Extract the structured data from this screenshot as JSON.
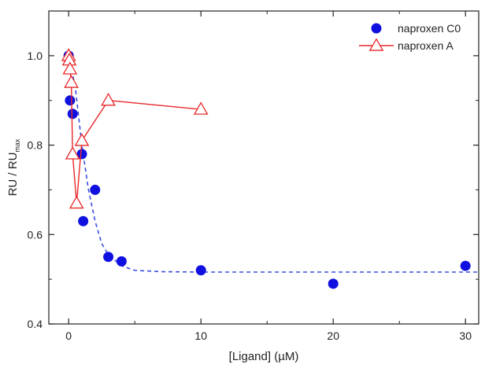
{
  "chart_data": {
    "type": "scatter",
    "xlabel": "[Ligand] (µM)",
    "ylabel_main": "RU / RU",
    "ylabel_sub": "max",
    "xlim": [
      -1.5,
      31
    ],
    "ylim": [
      0.4,
      1.1
    ],
    "xticks": [
      0,
      10,
      20,
      30
    ],
    "yticks": [
      0.4,
      0.6,
      0.8,
      1.0
    ],
    "xtick_labels": [
      "0",
      "10",
      "20",
      "30"
    ],
    "ytick_labels": [
      "0.4",
      "0.6",
      "0.8",
      "1.0"
    ],
    "legend_position": "top-right",
    "series": [
      {
        "name": "naproxen C0",
        "marker": "filled-circle",
        "color": "#1010e0",
        "points": [
          {
            "x": 0,
            "y": 1.0
          },
          {
            "x": 0.1,
            "y": 0.9
          },
          {
            "x": 0.3,
            "y": 0.87
          },
          {
            "x": 1,
            "y": 0.78
          },
          {
            "x": 1.1,
            "y": 0.63
          },
          {
            "x": 2,
            "y": 0.7
          },
          {
            "x": 3,
            "y": 0.55
          },
          {
            "x": 4,
            "y": 0.54
          },
          {
            "x": 10,
            "y": 0.52
          },
          {
            "x": 20,
            "y": 0.49
          },
          {
            "x": 30,
            "y": 0.53
          }
        ],
        "fit": {
          "style": "dashed",
          "color": "#3a4ee0",
          "points": [
            {
              "x": 0,
              "y": 1.0
            },
            {
              "x": 0.5,
              "y": 0.93
            },
            {
              "x": 1,
              "y": 0.8
            },
            {
              "x": 1.5,
              "y": 0.7
            },
            {
              "x": 2,
              "y": 0.63
            },
            {
              "x": 2.5,
              "y": 0.58
            },
            {
              "x": 3,
              "y": 0.555
            },
            {
              "x": 4,
              "y": 0.53
            },
            {
              "x": 5,
              "y": 0.52
            },
            {
              "x": 7,
              "y": 0.517
            },
            {
              "x": 10,
              "y": 0.516
            },
            {
              "x": 20,
              "y": 0.516
            },
            {
              "x": 31,
              "y": 0.516
            }
          ]
        }
      },
      {
        "name": "naproxen A",
        "marker": "open-triangle",
        "color": "#e8282a",
        "line": "solid",
        "points": [
          {
            "x": 0,
            "y": 1.0
          },
          {
            "x": 0.05,
            "y": 0.99
          },
          {
            "x": 0.1,
            "y": 0.97
          },
          {
            "x": 0.2,
            "y": 0.94
          },
          {
            "x": 0.3,
            "y": 0.78
          },
          {
            "x": 0.6,
            "y": 0.67
          },
          {
            "x": 1,
            "y": 0.81
          },
          {
            "x": 3,
            "y": 0.9
          },
          {
            "x": 10,
            "y": 0.88
          }
        ]
      }
    ]
  }
}
